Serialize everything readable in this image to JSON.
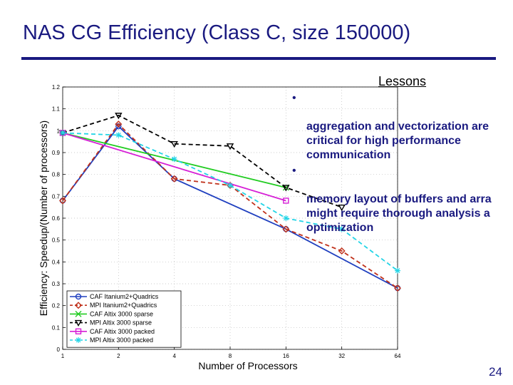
{
  "slide": {
    "title": "NAS CG Efficiency (Class C, size 150000)",
    "lessons_heading": "Lessons",
    "bullets": [
      "aggregation and vectorization are\ncritical for high performance\ncommunication",
      "memory layout of buffers and arra\nmight require thorough analysis a\noptimization"
    ],
    "page_number": "24",
    "title_color": "#1a1a80",
    "bullet_marker": "•"
  },
  "chart_data": {
    "type": "line",
    "title": "",
    "xlabel": "Number of Processors",
    "ylabel": "Efficiency: Speedup/(Number of processors)",
    "x": [
      1,
      2,
      4,
      8,
      16,
      32,
      64
    ],
    "x_tick_labels": [
      "1",
      "2",
      "4",
      "8",
      "16",
      "32",
      "64"
    ],
    "x_scale": "log2",
    "ylim": [
      0,
      1.2
    ],
    "y_ticks": [
      0,
      0.1,
      0.2,
      0.3,
      0.4,
      0.5,
      0.6,
      0.7,
      0.8,
      0.9,
      1,
      1.1,
      1.2
    ],
    "y_tick_labels": [
      "0",
      "0.1",
      "0.2",
      "0.3",
      "0.4",
      "0.5",
      "0.6",
      "0.7",
      "0.8",
      "0.9",
      "1",
      "1.1",
      "1.2"
    ],
    "grid": true,
    "legend_position": "bottom-left",
    "series": [
      {
        "name": "CAF Itanium2+Quadrics",
        "x": [
          1,
          2,
          4,
          16,
          64
        ],
        "values": [
          0.68,
          1.02,
          0.78,
          0.55,
          0.28
        ],
        "color": "#1f3fbf",
        "marker": "circle",
        "dash": "solid"
      },
      {
        "name": "MPI Itanium2+Quadrics",
        "x": [
          1,
          2,
          4,
          8,
          16,
          32,
          64
        ],
        "values": [
          0.68,
          1.03,
          0.78,
          0.75,
          0.55,
          0.45,
          0.28
        ],
        "color": "#c0301a",
        "marker": "diamond",
        "dash": "dashed"
      },
      {
        "name": "CAF Altix 3000 sparse",
        "x": [
          1,
          16
        ],
        "values": [
          0.99,
          0.74
        ],
        "color": "#22cc22",
        "marker": "x",
        "dash": "solid"
      },
      {
        "name": "MPI Altix 3000 sparse",
        "x": [
          1,
          2,
          4,
          8,
          16,
          32
        ],
        "values": [
          0.99,
          1.07,
          0.94,
          0.93,
          0.74,
          0.65
        ],
        "color": "#000000",
        "marker": "triangle-down",
        "dash": "dashed"
      },
      {
        "name": "CAF Altix 3000 packed",
        "x": [
          1,
          16
        ],
        "values": [
          0.99,
          0.68
        ],
        "color": "#d61fd6",
        "marker": "square",
        "dash": "solid"
      },
      {
        "name": "MPI Altix 3000 packed",
        "x": [
          1,
          2,
          4,
          8,
          16,
          32,
          64
        ],
        "values": [
          0.99,
          0.98,
          0.87,
          0.75,
          0.6,
          0.55,
          0.36
        ],
        "color": "#22d4e6",
        "marker": "star",
        "dash": "dashed"
      }
    ]
  }
}
